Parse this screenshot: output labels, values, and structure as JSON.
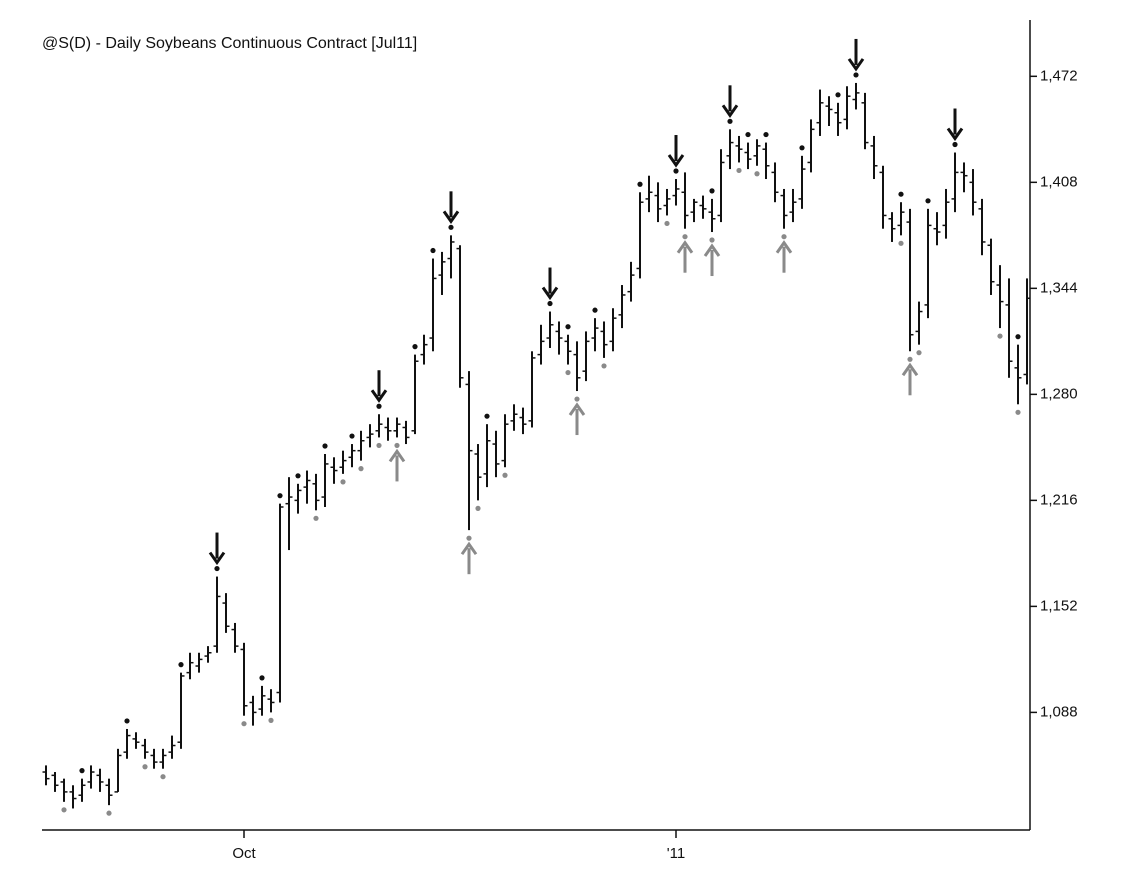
{
  "chart_data": {
    "type": "ohlc",
    "title": "@S(D) - Daily Soybeans Continuous Contract [Jul11]",
    "categories": [
      null,
      null,
      null,
      null,
      null,
      null,
      null,
      null,
      null,
      null,
      null,
      null,
      null,
      null,
      null,
      null,
      null,
      null,
      null,
      null,
      null,
      null,
      "Oct",
      null,
      null,
      null,
      null,
      null,
      null,
      null,
      null,
      null,
      null,
      null,
      null,
      null,
      null,
      null,
      null,
      null,
      null,
      null,
      null,
      null,
      null,
      null,
      null,
      null,
      null,
      null,
      null,
      null,
      null,
      null,
      null,
      null,
      null,
      null,
      null,
      null,
      null,
      null,
      null,
      null,
      null,
      null,
      null,
      null,
      null,
      null,
      "'11",
      null,
      null,
      null,
      null,
      null,
      null,
      null,
      null,
      null,
      null,
      null,
      null,
      null,
      null,
      null,
      null,
      null,
      null,
      null,
      null,
      null,
      null,
      null,
      null,
      null,
      null,
      null,
      null,
      null,
      null,
      null,
      null,
      null,
      null,
      null,
      null,
      null,
      null,
      null
    ],
    "open": [
      1052,
      1050,
      1046,
      1040,
      1038,
      1046,
      1050,
      1044,
      1040,
      1064,
      1072,
      1068,
      1062,
      1058,
      1064,
      1070,
      1112,
      1116,
      1122,
      1128,
      1154,
      1138,
      1126,
      1094,
      1090,
      1096,
      1100,
      1214,
      1216,
      1224,
      1226,
      1218,
      1236,
      1236,
      1242,
      1246,
      1254,
      1258,
      1260,
      1258,
      1260,
      1258,
      1304,
      1314,
      1352,
      1362,
      1368,
      1286,
      1244,
      1232,
      1250,
      1240,
      1264,
      1266,
      1264,
      1304,
      1314,
      1318,
      1312,
      1304,
      1294,
      1314,
      1318,
      1312,
      1328,
      1342,
      1356,
      1398,
      1400,
      1394,
      1400,
      1402,
      1390,
      1394,
      1390,
      1388,
      1424,
      1430,
      1426,
      1424,
      1428,
      1414,
      1400,
      1390,
      1398,
      1420,
      1444,
      1454,
      1450,
      1446,
      1458,
      1456,
      1430,
      1414,
      1386,
      1382,
      1384,
      1318,
      1334,
      1380,
      1382,
      1398,
      1414,
      1408,
      1392,
      1370,
      1346,
      1334,
      1296,
      1292
    ],
    "high": [
      1056,
      1052,
      1048,
      1044,
      1048,
      1056,
      1054,
      1048,
      1066,
      1078,
      1076,
      1072,
      1066,
      1066,
      1074,
      1112,
      1124,
      1124,
      1128,
      1170,
      1160,
      1142,
      1130,
      1098,
      1104,
      1102,
      1214,
      1230,
      1226,
      1234,
      1232,
      1244,
      1242,
      1246,
      1250,
      1258,
      1262,
      1268,
      1266,
      1266,
      1264,
      1304,
      1316,
      1362,
      1366,
      1376,
      1370,
      1294,
      1250,
      1262,
      1258,
      1268,
      1274,
      1272,
      1306,
      1322,
      1330,
      1324,
      1316,
      1312,
      1318,
      1326,
      1324,
      1332,
      1346,
      1360,
      1402,
      1412,
      1408,
      1404,
      1410,
      1414,
      1398,
      1400,
      1398,
      1428,
      1440,
      1436,
      1432,
      1434,
      1432,
      1420,
      1404,
      1404,
      1424,
      1446,
      1464,
      1460,
      1456,
      1466,
      1468,
      1462,
      1436,
      1418,
      1390,
      1396,
      1392,
      1336,
      1392,
      1390,
      1404,
      1426,
      1420,
      1416,
      1398,
      1374,
      1358,
      1350,
      1310,
      1350
    ],
    "low": [
      1044,
      1040,
      1034,
      1030,
      1034,
      1042,
      1040,
      1032,
      1040,
      1060,
      1066,
      1060,
      1054,
      1054,
      1060,
      1066,
      1108,
      1112,
      1118,
      1124,
      1136,
      1124,
      1086,
      1080,
      1086,
      1088,
      1094,
      1186,
      1208,
      1214,
      1210,
      1212,
      1226,
      1232,
      1236,
      1240,
      1248,
      1254,
      1252,
      1254,
      1250,
      1256,
      1298,
      1306,
      1340,
      1350,
      1284,
      1198,
      1216,
      1224,
      1230,
      1236,
      1258,
      1256,
      1260,
      1298,
      1308,
      1304,
      1298,
      1282,
      1288,
      1306,
      1302,
      1306,
      1320,
      1336,
      1350,
      1390,
      1384,
      1388,
      1394,
      1380,
      1384,
      1386,
      1378,
      1384,
      1416,
      1420,
      1416,
      1418,
      1410,
      1396,
      1380,
      1384,
      1392,
      1414,
      1436,
      1442,
      1436,
      1440,
      1452,
      1428,
      1410,
      1380,
      1372,
      1376,
      1306,
      1310,
      1326,
      1370,
      1374,
      1390,
      1402,
      1388,
      1364,
      1340,
      1320,
      1290,
      1274,
      1286
    ],
    "close": [
      1048,
      1044,
      1040,
      1036,
      1044,
      1052,
      1046,
      1038,
      1062,
      1074,
      1070,
      1064,
      1058,
      1062,
      1068,
      1110,
      1118,
      1120,
      1124,
      1158,
      1140,
      1128,
      1092,
      1088,
      1098,
      1094,
      1212,
      1218,
      1222,
      1228,
      1216,
      1238,
      1234,
      1240,
      1246,
      1252,
      1256,
      1262,
      1258,
      1262,
      1254,
      1300,
      1310,
      1350,
      1360,
      1372,
      1290,
      1246,
      1230,
      1252,
      1238,
      1262,
      1268,
      1262,
      1302,
      1312,
      1322,
      1314,
      1306,
      1290,
      1312,
      1320,
      1310,
      1326,
      1340,
      1352,
      1396,
      1402,
      1392,
      1398,
      1404,
      1388,
      1396,
      1392,
      1386,
      1420,
      1432,
      1428,
      1422,
      1430,
      1418,
      1402,
      1388,
      1396,
      1416,
      1440,
      1456,
      1452,
      1444,
      1460,
      1462,
      1432,
      1418,
      1388,
      1380,
      1390,
      1316,
      1330,
      1382,
      1378,
      1396,
      1414,
      1412,
      1396,
      1372,
      1348,
      1336,
      1300,
      1290,
      1338
    ],
    "swing_highs": [
      4,
      9,
      15,
      19,
      24,
      26,
      28,
      31,
      34,
      37,
      41,
      43,
      45,
      49,
      56,
      58,
      61,
      66,
      70,
      74,
      76,
      78,
      80,
      84,
      88,
      90,
      95,
      98,
      101,
      108
    ],
    "swing_lows": [
      2,
      7,
      11,
      13,
      22,
      25,
      30,
      33,
      35,
      37,
      39,
      47,
      48,
      51,
      58,
      59,
      62,
      69,
      71,
      74,
      77,
      79,
      82,
      95,
      96,
      97,
      106,
      108
    ],
    "sell_arrows": [
      19,
      37,
      45,
      56,
      70,
      76,
      90,
      101
    ],
    "buy_arrows": [
      39,
      47,
      59,
      71,
      74,
      82,
      96
    ],
    "ylim": [
      1017,
      1506
    ],
    "yticks": [
      {
        "value": 1088,
        "label": "1,088"
      },
      {
        "value": 1152,
        "label": "1,152"
      },
      {
        "value": 1216,
        "label": "1,216"
      },
      {
        "value": 1280,
        "label": "1,280"
      },
      {
        "value": 1344,
        "label": "1,344"
      },
      {
        "value": 1408,
        "label": "1,408"
      },
      {
        "value": 1472,
        "label": "1,472"
      }
    ],
    "color": "#111111",
    "low_marker_color": "#8a8a8a"
  }
}
